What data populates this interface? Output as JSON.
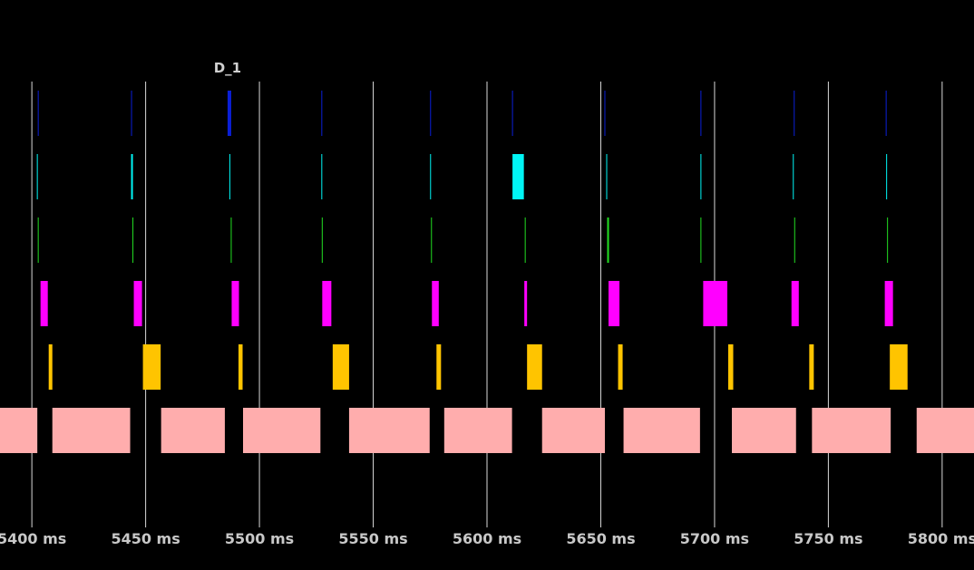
{
  "chart_data": {
    "type": "timeline",
    "xlabel": "",
    "ylabel": "",
    "x_unit": "ms",
    "xlim": [
      5386,
      5814
    ],
    "grid": true,
    "x_ticks": [
      5400,
      5450,
      5500,
      5550,
      5600,
      5650,
      5700,
      5750,
      5800
    ],
    "tick_labels": [
      "5400 ms",
      "5450 ms",
      "5500 ms",
      "5550 ms",
      "5600 ms",
      "5650 ms",
      "5700 ms",
      "5750 ms",
      "5800 ms"
    ],
    "annotations": [
      {
        "text": "D_1",
        "x": 5486
      }
    ],
    "series": [
      {
        "color": "#0a1fd6",
        "events": [
          [
            5402.6,
            5403.0
          ],
          [
            5443.6,
            5444.0
          ],
          [
            5486.0,
            5487.6
          ],
          [
            5527.2,
            5527.6
          ],
          [
            5575.0,
            5575.4
          ],
          [
            5611.0,
            5611.4
          ],
          [
            5651.6,
            5652.0
          ],
          [
            5693.8,
            5694.2
          ],
          [
            5734.8,
            5735.2
          ],
          [
            5775.2,
            5775.6
          ]
        ]
      },
      {
        "color": "#00f5f5",
        "events": [
          [
            5402.2,
            5402.6
          ],
          [
            5443.6,
            5444.4
          ],
          [
            5486.8,
            5487.2
          ],
          [
            5527.2,
            5527.6
          ],
          [
            5575.0,
            5575.4
          ],
          [
            5611.2,
            5616.2
          ],
          [
            5652.4,
            5652.8
          ],
          [
            5693.8,
            5694.2
          ],
          [
            5734.4,
            5734.8
          ],
          [
            5775.4,
            5775.8
          ]
        ]
      },
      {
        "color": "#22dd22",
        "events": [
          [
            5402.6,
            5403.0
          ],
          [
            5444.2,
            5444.6
          ],
          [
            5487.4,
            5487.8
          ],
          [
            5527.4,
            5527.8
          ],
          [
            5575.4,
            5575.8
          ],
          [
            5616.6,
            5617.0
          ],
          [
            5652.8,
            5653.6
          ],
          [
            5693.8,
            5694.2
          ],
          [
            5735.0,
            5735.4
          ],
          [
            5775.8,
            5776.2
          ]
        ]
      },
      {
        "color": "#ff00ff",
        "events": [
          [
            5403.8,
            5407.0
          ],
          [
            5444.8,
            5448.4
          ],
          [
            5487.8,
            5491.0
          ],
          [
            5527.6,
            5531.6
          ],
          [
            5575.8,
            5578.8
          ],
          [
            5616.4,
            5617.6
          ],
          [
            5653.4,
            5658.2
          ],
          [
            5695.0,
            5705.6
          ],
          [
            5733.8,
            5737.0
          ],
          [
            5774.8,
            5778.4
          ]
        ]
      },
      {
        "color": "#ffc400",
        "events": [
          [
            5407.4,
            5409.0
          ],
          [
            5448.8,
            5456.6
          ],
          [
            5490.8,
            5492.6
          ],
          [
            5532.2,
            5539.4
          ],
          [
            5577.8,
            5579.8
          ],
          [
            5617.6,
            5624.2
          ],
          [
            5657.6,
            5659.6
          ],
          [
            5706.0,
            5708.2
          ],
          [
            5741.6,
            5743.6
          ],
          [
            5777.0,
            5784.8
          ]
        ]
      },
      {
        "color": "#ffadad",
        "events": [
          [
            5386.0,
            5402.4
          ],
          [
            5409.0,
            5443.2
          ],
          [
            5456.8,
            5484.8
          ],
          [
            5492.8,
            5526.8
          ],
          [
            5539.4,
            5574.8
          ],
          [
            5581.2,
            5611.0
          ],
          [
            5624.2,
            5651.8
          ],
          [
            5660.0,
            5693.6
          ],
          [
            5707.6,
            5735.8
          ],
          [
            5742.8,
            5777.4
          ],
          [
            5788.8,
            5814.0
          ]
        ]
      }
    ]
  }
}
